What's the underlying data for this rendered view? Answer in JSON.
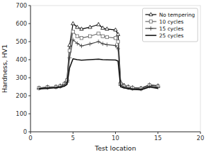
{
  "chart_data": {
    "type": "line",
    "xlabel": "Test location",
    "ylabel": "Hardness, HV1",
    "x": [
      1,
      2,
      3,
      3.5,
      4,
      4.3,
      4.6,
      5,
      5.5,
      6,
      7,
      8,
      8.5,
      9,
      10,
      10.3,
      10.6,
      11,
      11.5,
      12,
      13,
      14,
      15
    ],
    "xlim": [
      0,
      20
    ],
    "xticks": [
      0,
      5,
      10,
      15,
      20
    ],
    "ylim": [
      0,
      700
    ],
    "yticks": [
      0,
      100,
      200,
      300,
      400,
      500,
      600,
      700
    ],
    "grid": false,
    "legend": "upper right",
    "series": [
      {
        "name": "No tempering",
        "color": "#000000",
        "marker": "triangle",
        "values": [
          243,
          248,
          250,
          255,
          268,
          290,
          480,
          600,
          580,
          570,
          580,
          595,
          575,
          570,
          565,
          540,
          275,
          258,
          250,
          245,
          242,
          260,
          255
        ]
      },
      {
        "name": "10 cycles",
        "color": "#666666",
        "marker": "square",
        "values": [
          243,
          247,
          249,
          253,
          265,
          285,
          450,
          555,
          530,
          520,
          530,
          545,
          530,
          525,
          520,
          500,
          265,
          253,
          248,
          243,
          240,
          258,
          252
        ]
      },
      {
        "name": "15 cycles",
        "color": "#444444",
        "marker": "plus",
        "values": [
          241,
          245,
          247,
          251,
          261,
          275,
          410,
          510,
          490,
          476,
          487,
          500,
          488,
          483,
          478,
          460,
          258,
          249,
          244,
          239,
          237,
          253,
          247
        ]
      },
      {
        "name": "25 cycles",
        "color": "#111111",
        "marker": "none",
        "values": [
          238,
          241,
          244,
          247,
          253,
          263,
          355,
          405,
          400,
          397,
          400,
          403,
          400,
          399,
          398,
          392,
          250,
          243,
          239,
          235,
          233,
          248,
          241
        ]
      }
    ]
  }
}
